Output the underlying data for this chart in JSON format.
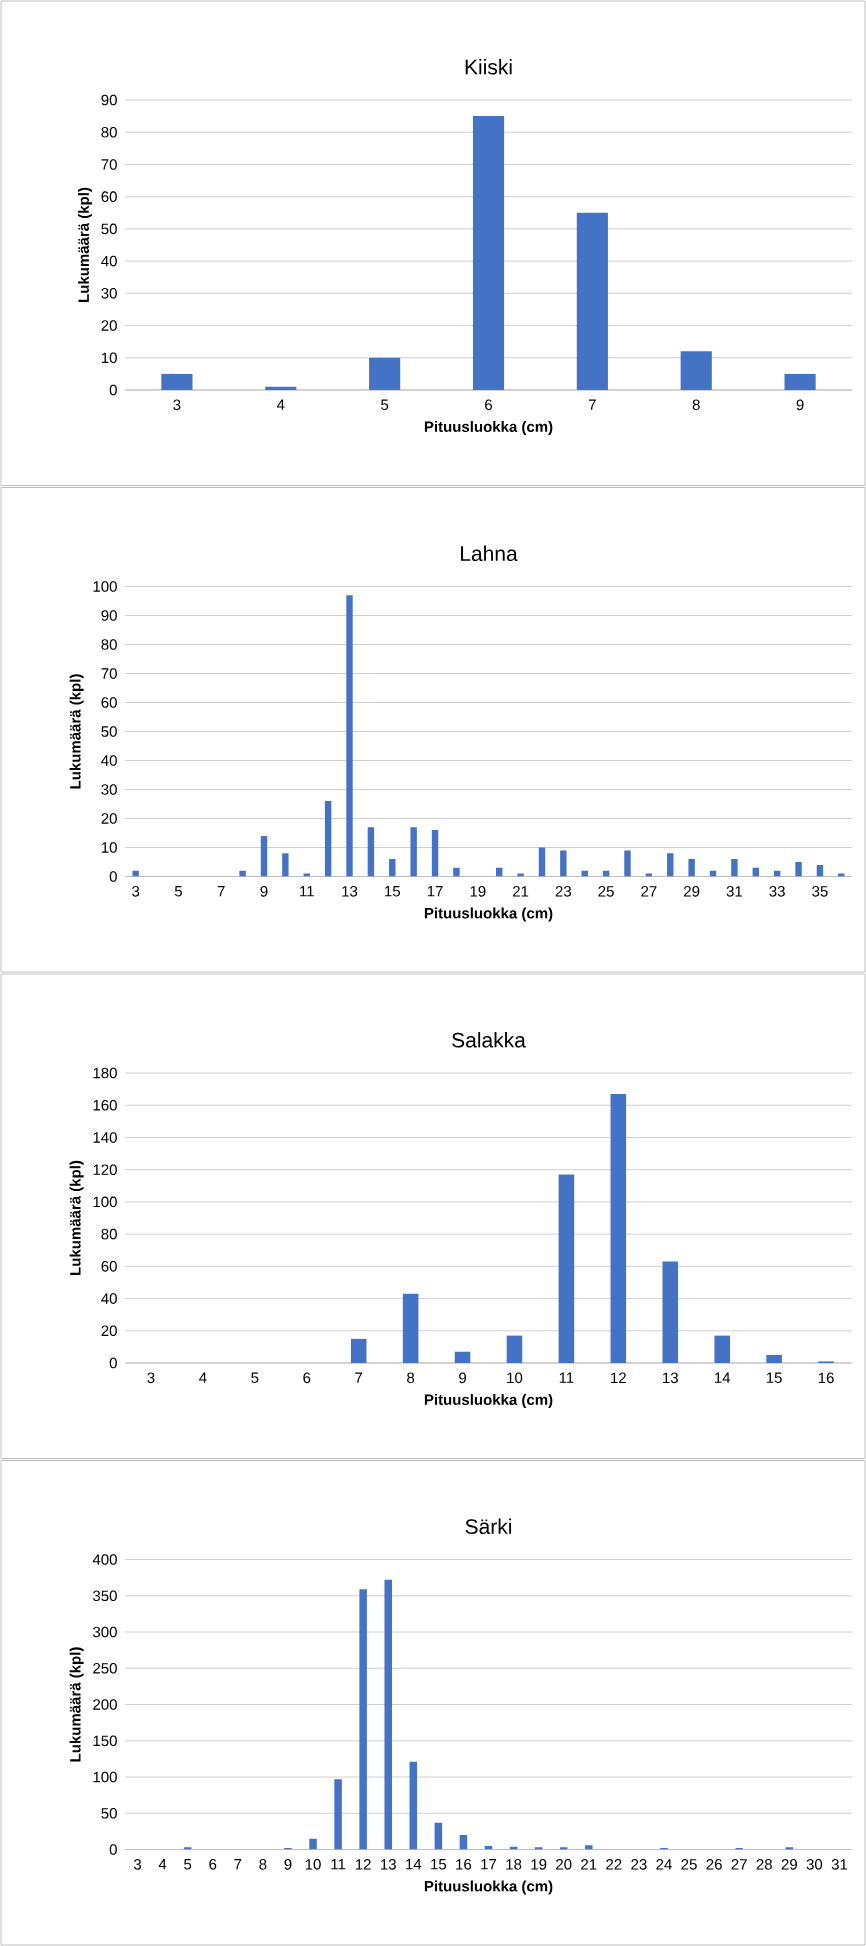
{
  "chart_data": [
    {
      "type": "bar",
      "title": "Kiiski",
      "xlabel": "Pituusluokka (cm)",
      "ylabel": "Lukumäärä (kpl)",
      "categories": [
        "3",
        "4",
        "5",
        "6",
        "7",
        "8",
        "9"
      ],
      "values": [
        5,
        1,
        10,
        85,
        55,
        12,
        5
      ],
      "color": "#4472c4",
      "ylim": [
        0,
        90
      ],
      "yticks": [
        0,
        10,
        20,
        30,
        40,
        50,
        60,
        70,
        80,
        90
      ],
      "grid": "y"
    },
    {
      "type": "bar",
      "title": "Lahna",
      "xlabel": "Pituusluokka (cm)",
      "ylabel": "Lukumäärä (kpl)",
      "categories": [
        "3",
        null,
        "5",
        null,
        "7",
        null,
        "9",
        null,
        "11",
        null,
        "13",
        null,
        "15",
        null,
        "17",
        null,
        "19",
        null,
        "21",
        null,
        "23",
        null,
        "25",
        null,
        "27",
        null,
        "29",
        null,
        "31",
        null,
        "33",
        null,
        "35",
        null
      ],
      "values": [
        2,
        0,
        0,
        0,
        0,
        2,
        14,
        8,
        1,
        26,
        97,
        17,
        6,
        17,
        16,
        3,
        0,
        3,
        1,
        10,
        9,
        2,
        2,
        9,
        1,
        8,
        6,
        2,
        6,
        3,
        2,
        5,
        4,
        1
      ],
      "color": "#4472c4",
      "ylim": [
        0,
        100
      ],
      "yticks": [
        0,
        10,
        20,
        30,
        40,
        50,
        60,
        70,
        80,
        90,
        100
      ],
      "grid": "y"
    },
    {
      "type": "bar",
      "title": "Salakka",
      "xlabel": "Pituusluokka (cm)",
      "ylabel": "Lukumäärä (kpl)",
      "categories": [
        "3",
        "4",
        "5",
        "6",
        "7",
        "8",
        "9",
        "10",
        "11",
        "12",
        "13",
        "14",
        "15",
        "16"
      ],
      "values": [
        0,
        0,
        0,
        0,
        15,
        43,
        7,
        17,
        117,
        167,
        63,
        17,
        5,
        1
      ],
      "color": "#4472c4",
      "ylim": [
        0,
        180
      ],
      "yticks": [
        0,
        20,
        40,
        60,
        80,
        100,
        120,
        140,
        160,
        180
      ],
      "grid": "y"
    },
    {
      "type": "bar",
      "title": "Särki",
      "xlabel": "Pituusluokka (cm)",
      "ylabel": "Lukumäärä (kpl)",
      "categories": [
        "3",
        "4",
        "5",
        "6",
        "7",
        "8",
        "9",
        "10",
        "11",
        "12",
        "13",
        "14",
        "15",
        "16",
        "17",
        "18",
        "19",
        "20",
        "21",
        "22",
        "23",
        "24",
        "25",
        "26",
        "27",
        "28",
        "29",
        "30",
        "31"
      ],
      "values": [
        0,
        0,
        3,
        0,
        0,
        null,
        2,
        15,
        97,
        359,
        372,
        121,
        37,
        20,
        5,
        4,
        3,
        3,
        6,
        null,
        0,
        2,
        null,
        0,
        2,
        null,
        3,
        null,
        null
      ],
      "color": "#4472c4",
      "ylim": [
        0,
        400
      ],
      "yticks": [
        0,
        50,
        100,
        150,
        200,
        250,
        300,
        350,
        400
      ],
      "grid": "y"
    }
  ]
}
